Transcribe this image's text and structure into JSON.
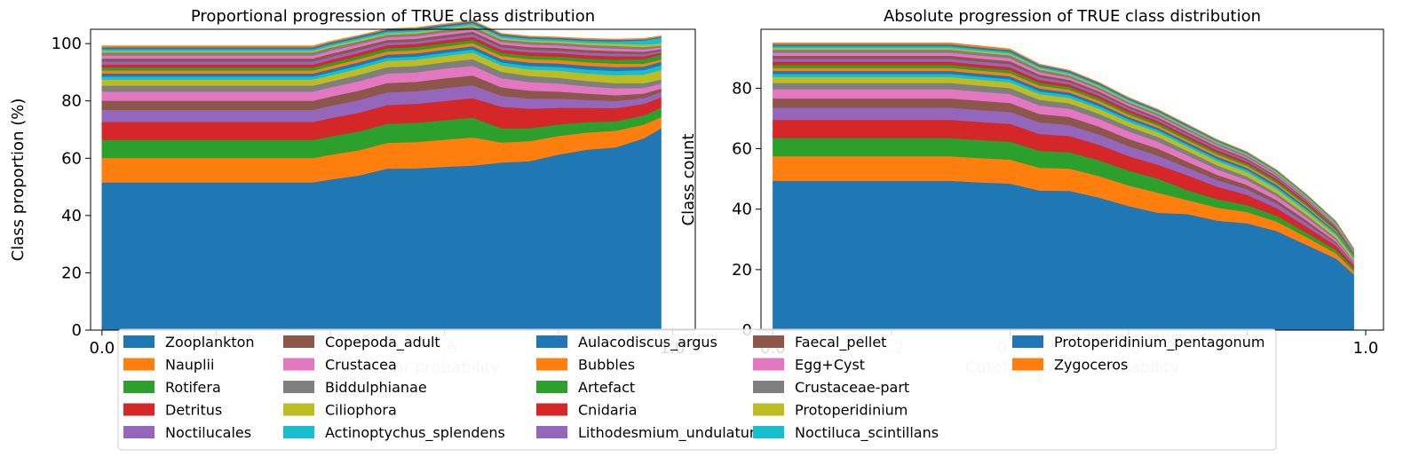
{
  "chart_data": [
    {
      "type": "area",
      "title": "Proportional progression of TRUE class distribution",
      "xlabel": "Cutoff value for probability",
      "ylabel": "Class proportion (%)",
      "xlim": [
        -0.02,
        1.04
      ],
      "ylim": [
        0,
        105
      ],
      "xticks": [
        "0.0",
        "0.2",
        "0.4",
        "0.6",
        "0.8",
        "1.0"
      ],
      "yticks": [
        "0",
        "20",
        "40",
        "60",
        "80",
        "100"
      ],
      "stacked": true,
      "x": [
        0.0,
        0.1,
        0.2,
        0.3,
        0.37,
        0.4,
        0.45,
        0.5,
        0.55,
        0.6,
        0.65,
        0.7,
        0.75,
        0.8,
        0.85,
        0.9,
        0.95,
        0.98
      ],
      "series": [
        {
          "name": "Zooplankton",
          "values": [
            51.6,
            51.6,
            51.6,
            51.6,
            51.6,
            52.6,
            54.0,
            56.4,
            56.5,
            57.0,
            57.5,
            58.5,
            59.0,
            61.3,
            63.0,
            63.8,
            67.0,
            70.5
          ]
        },
        {
          "name": "Nauplii",
          "values": [
            8.5,
            8.5,
            8.5,
            8.5,
            8.5,
            8.6,
            8.8,
            9.0,
            9.2,
            9.5,
            9.8,
            7.0,
            7.0,
            6.5,
            6.0,
            5.8,
            4.8,
            3.9
          ]
        },
        {
          "name": "Rotifera",
          "values": [
            6.3,
            6.3,
            6.3,
            6.3,
            6.3,
            6.4,
            6.6,
            6.6,
            6.7,
            6.8,
            6.9,
            5.0,
            4.5,
            4.0,
            3.6,
            3.3,
            3.2,
            3.3
          ]
        },
        {
          "name": "Detritus",
          "values": [
            6.3,
            6.3,
            6.3,
            6.3,
            6.3,
            6.4,
            6.5,
            6.6,
            6.6,
            6.7,
            6.8,
            7.5,
            6.8,
            5.8,
            5.0,
            4.6,
            4.0,
            3.6
          ]
        },
        {
          "name": "Noctilucales",
          "values": [
            4.2,
            4.2,
            4.2,
            4.2,
            4.2,
            4.3,
            4.4,
            4.4,
            4.4,
            4.5,
            4.5,
            3.8,
            3.5,
            3.2,
            2.8,
            2.5,
            2.0,
            1.8
          ]
        },
        {
          "name": "Copepoda_adult",
          "values": [
            3.2,
            3.2,
            3.2,
            3.2,
            3.2,
            3.2,
            3.3,
            3.3,
            3.3,
            3.4,
            3.4,
            3.0,
            2.8,
            2.5,
            2.2,
            2.0,
            1.6,
            1.2
          ]
        },
        {
          "name": "Crustacea",
          "values": [
            3.2,
            3.2,
            3.2,
            3.2,
            3.2,
            3.2,
            3.3,
            3.3,
            3.3,
            3.4,
            3.4,
            3.2,
            3.0,
            2.8,
            2.5,
            2.4,
            2.0,
            1.8
          ]
        },
        {
          "name": "Biddulphianae",
          "values": [
            2.1,
            2.1,
            2.1,
            2.1,
            2.1,
            2.1,
            2.2,
            2.2,
            2.2,
            2.2,
            2.3,
            2.2,
            2.1,
            2.0,
            1.9,
            1.8,
            1.6,
            1.4
          ]
        },
        {
          "name": "Ciliophora",
          "values": [
            2.1,
            2.1,
            2.1,
            2.1,
            2.1,
            2.1,
            2.2,
            2.2,
            2.2,
            2.2,
            2.3,
            2.2,
            2.3,
            2.5,
            2.6,
            2.8,
            3.0,
            3.3
          ]
        },
        {
          "name": "Actinoptychus_splendens",
          "values": [
            1.05,
            1.05,
            1.05,
            1.05,
            1.05,
            1.08,
            1.1,
            1.1,
            1.1,
            1.1,
            1.1,
            1.1,
            1.2,
            1.3,
            1.4,
            1.5,
            1.6,
            1.7
          ]
        },
        {
          "name": "Aulacodiscus_argus",
          "values": [
            1.05,
            1.05,
            1.05,
            1.05,
            1.05,
            1.08,
            1.1,
            1.1,
            1.1,
            1.1,
            1.1,
            1.1,
            1.2,
            1.2,
            1.3,
            1.3,
            1.2,
            1.2
          ]
        },
        {
          "name": "Bubbles",
          "values": [
            1.05,
            1.05,
            1.05,
            1.05,
            1.05,
            1.08,
            1.1,
            1.1,
            1.1,
            1.1,
            1.1,
            1.1,
            1.2,
            1.2,
            1.2,
            1.2,
            1.0,
            0.8
          ]
        },
        {
          "name": "Artefact",
          "values": [
            1.05,
            1.05,
            1.05,
            1.05,
            1.05,
            1.08,
            1.1,
            1.1,
            1.1,
            1.1,
            1.1,
            1.1,
            1.2,
            1.2,
            1.3,
            1.4,
            1.6,
            1.8
          ]
        },
        {
          "name": "Cnidaria",
          "values": [
            1.05,
            1.05,
            1.05,
            1.05,
            1.05,
            1.08,
            1.1,
            1.1,
            1.1,
            1.1,
            1.1,
            1.1,
            1.2,
            1.2,
            1.2,
            1.2,
            1.0,
            0.6
          ]
        },
        {
          "name": "Lithodesmium_undulatum",
          "values": [
            1.05,
            1.05,
            1.05,
            1.05,
            1.05,
            1.08,
            1.0,
            0.9,
            0.9,
            0.9,
            0.9,
            0.9,
            0.9,
            0.9,
            0.9,
            0.9,
            0.8,
            0.6
          ]
        },
        {
          "name": "Faecal_pellet",
          "values": [
            1.05,
            1.05,
            1.05,
            1.05,
            1.05,
            1.08,
            1.0,
            0.9,
            0.9,
            0.9,
            0.9,
            0.9,
            0.9,
            0.9,
            0.9,
            0.9,
            0.8,
            0.6
          ]
        },
        {
          "name": "Egg+Cyst",
          "values": [
            1.05,
            1.05,
            1.05,
            1.05,
            1.05,
            1.08,
            1.0,
            0.9,
            0.9,
            0.9,
            0.9,
            0.9,
            0.9,
            0.9,
            0.9,
            0.9,
            0.8,
            0.6
          ]
        },
        {
          "name": "Crustaceae-part",
          "values": [
            1.05,
            1.05,
            1.05,
            1.05,
            1.05,
            1.08,
            1.0,
            0.9,
            0.9,
            0.9,
            0.9,
            0.9,
            0.9,
            0.9,
            0.9,
            0.9,
            0.8,
            0.6
          ]
        },
        {
          "name": "Protoperidinium",
          "values": [
            0.6,
            0.6,
            0.6,
            0.6,
            0.6,
            0.6,
            0.6,
            0.6,
            0.6,
            0.6,
            0.6,
            0.6,
            0.6,
            0.6,
            0.7,
            0.8,
            0.9,
            0.8
          ]
        },
        {
          "name": "Noctiluca_scintillans",
          "values": [
            0.6,
            0.6,
            0.6,
            0.6,
            0.6,
            0.6,
            0.6,
            0.6,
            0.6,
            0.6,
            0.6,
            0.6,
            0.6,
            0.6,
            0.7,
            0.8,
            1.4,
            2.0
          ]
        },
        {
          "name": "Protoperidinium_pentagonum",
          "values": [
            0.6,
            0.6,
            0.6,
            0.6,
            0.6,
            0.6,
            0.6,
            0.6,
            0.6,
            0.6,
            0.6,
            0.6,
            0.5,
            0.5,
            0.5,
            0.5,
            0.4,
            0.3
          ]
        },
        {
          "name": "Zygoceros",
          "values": [
            0.5,
            0.5,
            0.5,
            0.5,
            0.5,
            0.4,
            0.3,
            0.3,
            0.3,
            0.3,
            0.3,
            0.3,
            0.3,
            0.3,
            0.3,
            0.3,
            0.3,
            0.3
          ]
        }
      ]
    },
    {
      "type": "area",
      "title": "Absolute progression of TRUE class distribution",
      "xlabel": "Cutoff value for probability",
      "ylabel": "Class count",
      "xlim": [
        -0.02,
        1.03
      ],
      "ylim": [
        0,
        99.5
      ],
      "xticks": [
        "0.0",
        "0.2",
        "0.4",
        "0.6",
        "0.8",
        "1.0"
      ],
      "yticks": [
        "0",
        "20",
        "40",
        "60",
        "80"
      ],
      "stacked": true,
      "x": [
        0.0,
        0.1,
        0.2,
        0.3,
        0.35,
        0.4,
        0.45,
        0.5,
        0.55,
        0.6,
        0.65,
        0.7,
        0.75,
        0.8,
        0.85,
        0.9,
        0.95,
        0.98
      ],
      "totals": [
        95,
        95,
        95,
        95,
        94,
        93,
        88,
        86,
        82,
        77,
        73,
        68,
        63,
        59,
        53,
        45,
        36,
        27
      ]
    }
  ],
  "legend": {
    "placement": "bottom-center",
    "colors": [
      "#1f77b4",
      "#ff7f0e",
      "#2ca02c",
      "#d62728",
      "#9467bd",
      "#8c564b",
      "#e377c2",
      "#7f7f7f",
      "#bcbd22",
      "#17becf"
    ]
  }
}
